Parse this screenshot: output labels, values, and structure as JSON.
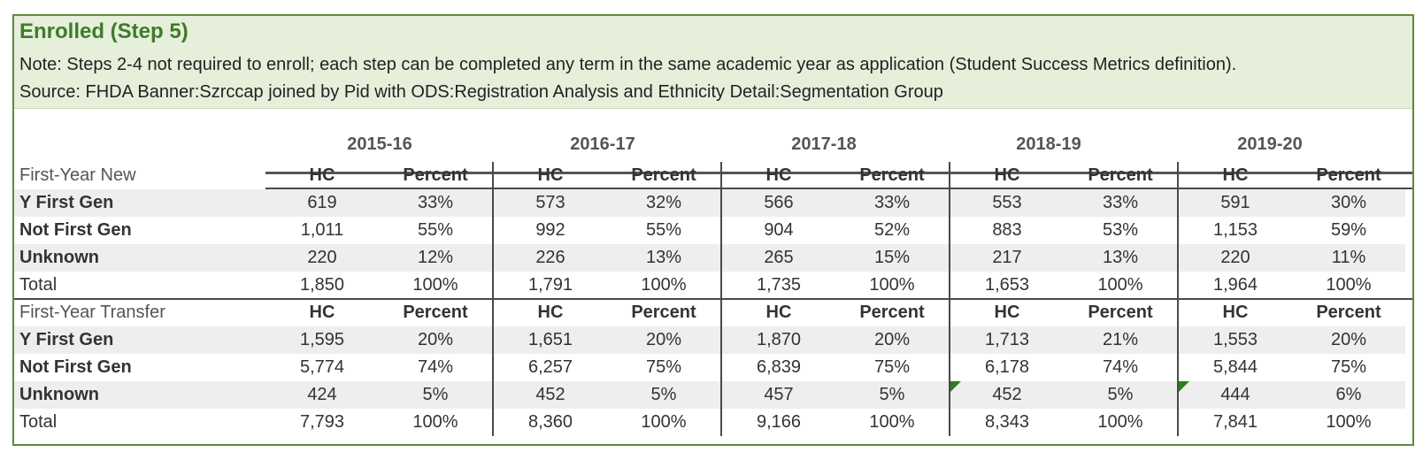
{
  "title": "Enrolled (Step 5)",
  "note": "Note: Steps 2-4 not required to enroll; each step can be completed any term in the same academic year as application (Student Success Metrics definition).",
  "source": "Source: FHDA Banner:Szrccap joined by Pid with ODS:Registration Analysis and Ethnicity Detail:Segmentation Group",
  "years": [
    "2015-16",
    "2016-17",
    "2017-18",
    "2018-19",
    "2019-20"
  ],
  "col_hc": "HC",
  "col_pct": "Percent",
  "sections": [
    {
      "label": "First-Year New",
      "rows": [
        {
          "label": "Y First Gen",
          "values": [
            "619",
            "33%",
            "573",
            "32%",
            "566",
            "33%",
            "553",
            "33%",
            "591",
            "30%"
          ]
        },
        {
          "label": "Not First Gen",
          "values": [
            "1,011",
            "55%",
            "992",
            "55%",
            "904",
            "52%",
            "883",
            "53%",
            "1,153",
            "59%"
          ]
        },
        {
          "label": "Unknown",
          "values": [
            "220",
            "12%",
            "226",
            "13%",
            "265",
            "15%",
            "217",
            "13%",
            "220",
            "11%"
          ]
        },
        {
          "label": "Total",
          "values": [
            "1,850",
            "100%",
            "1,791",
            "100%",
            "1,735",
            "100%",
            "1,653",
            "100%",
            "1,964",
            "100%"
          ]
        }
      ]
    },
    {
      "label": "First-Year Transfer",
      "rows": [
        {
          "label": "Y First Gen",
          "values": [
            "1,595",
            "20%",
            "1,651",
            "20%",
            "1,870",
            "20%",
            "1,713",
            "21%",
            "1,553",
            "20%"
          ]
        },
        {
          "label": "Not First Gen",
          "values": [
            "5,774",
            "74%",
            "6,257",
            "75%",
            "6,839",
            "75%",
            "6,178",
            "74%",
            "5,844",
            "75%"
          ]
        },
        {
          "label": "Unknown",
          "values": [
            "424",
            "5%",
            "452",
            "5%",
            "457",
            "5%",
            "452",
            "5%",
            "444",
            "6%"
          ]
        },
        {
          "label": "Total",
          "values": [
            "7,793",
            "100%",
            "8,360",
            "100%",
            "9,166",
            "100%",
            "8,343",
            "100%",
            "7,841",
            "100%"
          ]
        }
      ]
    }
  ]
}
